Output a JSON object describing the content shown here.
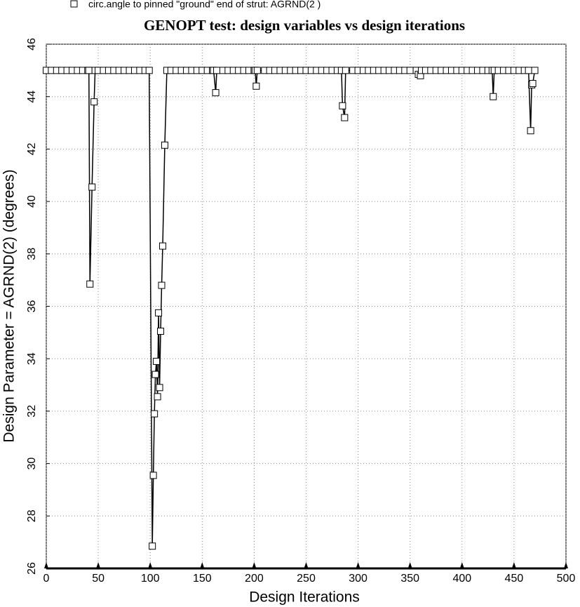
{
  "chart_data": {
    "type": "line",
    "title": "GENOPT test: design variables vs design iterations",
    "x_label": "Design Iterations",
    "y_label": "Design Parameter = AGRND(2) (degrees)",
    "xlim": [
      0,
      500
    ],
    "xticks": [
      0,
      50,
      100,
      150,
      200,
      250,
      300,
      350,
      400,
      450,
      500
    ],
    "ylim": [
      26,
      46
    ],
    "yticks": [
      26,
      28,
      30,
      32,
      34,
      36,
      38,
      40,
      42,
      44,
      46
    ],
    "grid": true,
    "legend": "top-left",
    "x": [
      0,
      5,
      10,
      15,
      20,
      25,
      30,
      35,
      40,
      41,
      42,
      44,
      46,
      47,
      50,
      55,
      60,
      65,
      70,
      75,
      80,
      85,
      90,
      95,
      99,
      102,
      103,
      104,
      105,
      106,
      107,
      108,
      109,
      110,
      111,
      112,
      114,
      116,
      120,
      125,
      130,
      135,
      140,
      145,
      150,
      155,
      160,
      161,
      163,
      164,
      170,
      175,
      180,
      185,
      190,
      195,
      200,
      201,
      202,
      203,
      210,
      215,
      220,
      225,
      230,
      235,
      240,
      245,
      250,
      255,
      260,
      265,
      270,
      275,
      280,
      284,
      285,
      287,
      288,
      295,
      300,
      305,
      310,
      315,
      320,
      325,
      330,
      335,
      340,
      345,
      350,
      356,
      358,
      360,
      361,
      365,
      370,
      375,
      380,
      385,
      390,
      395,
      400,
      405,
      410,
      415,
      420,
      425,
      429,
      430,
      431,
      435,
      440,
      445,
      450,
      455,
      460,
      464,
      466,
      467,
      468,
      470
    ],
    "series": [
      {
        "name": "circ.angle to pinned \"ground\" end of strut: AGRND(2 )",
        "color": "#000000",
        "values": [
          45,
          45,
          45,
          45,
          45,
          45,
          45,
          45,
          45,
          45,
          36.85,
          40.55,
          43.8,
          45,
          45,
          45,
          45,
          45,
          45,
          45,
          45,
          45,
          45,
          45,
          45,
          26.85,
          29.55,
          31.9,
          33.4,
          33.9,
          32.55,
          35.75,
          32.9,
          35.05,
          36.8,
          38.3,
          42.15,
          45,
          45,
          45,
          45,
          45,
          45,
          45,
          45,
          45,
          45,
          45,
          44.15,
          45,
          45,
          45,
          45,
          45,
          45,
          45,
          45,
          45,
          44.4,
          45,
          45,
          45,
          45,
          45,
          45,
          45,
          45,
          45,
          45,
          45,
          45,
          45,
          45,
          45,
          45,
          45,
          43.65,
          43.2,
          45,
          45,
          45,
          45,
          45,
          45,
          45,
          45,
          45,
          45,
          45,
          45,
          45,
          45,
          44.85,
          44.8,
          45,
          45,
          45,
          45,
          45,
          45,
          45,
          45,
          45,
          45,
          45,
          45,
          45,
          45,
          45,
          44,
          45,
          45,
          45,
          45,
          45,
          45,
          45,
          45,
          42.7,
          44.45,
          44.5,
          45
        ]
      }
    ]
  }
}
